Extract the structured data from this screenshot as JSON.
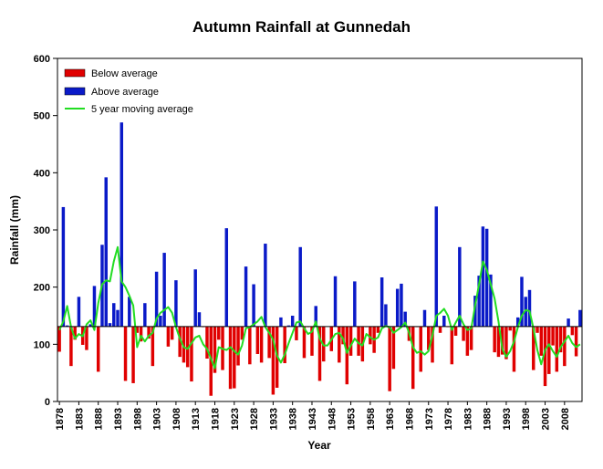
{
  "chart_data": {
    "type": "bar",
    "title": "Autumn Rainfall at Gunnedah",
    "xlabel": "Year",
    "ylabel": "Rainfall (mm)",
    "ylim": [
      0,
      600
    ],
    "yticks": [
      0,
      100,
      200,
      300,
      400,
      500,
      600
    ],
    "xticks": [
      1878,
      1883,
      1888,
      1893,
      1898,
      1903,
      1908,
      1913,
      1918,
      1923,
      1928,
      1933,
      1938,
      1943,
      1948,
      1953,
      1958,
      1963,
      1968,
      1973,
      1978,
      1983,
      1988,
      1993,
      1998,
      2003,
      2008
    ],
    "average": 131,
    "year_start": 1878,
    "year_end": 2012,
    "legend_position": "top-left",
    "legend": {
      "below": "Below average",
      "above": "Above average",
      "moving": "5 year moving average"
    },
    "colors": {
      "below": "#e00000",
      "above": "#0a1ac8",
      "moving": "#22dd22"
    },
    "values": [
      87,
      340,
      133,
      62,
      108,
      183,
      99,
      90,
      135,
      202,
      52,
      274,
      392,
      137,
      172,
      160,
      488,
      36,
      183,
      32,
      120,
      105,
      172,
      110,
      62,
      227,
      150,
      260,
      96,
      108,
      212,
      78,
      68,
      60,
      35,
      231,
      156,
      130,
      75,
      10,
      50,
      108,
      55,
      303,
      22,
      23,
      63,
      108,
      236,
      65,
      205,
      83,
      68,
      276,
      76,
      12,
      24,
      147,
      67,
      133,
      150,
      107,
      270,
      76,
      130,
      80,
      167,
      36,
      70,
      131,
      88,
      219,
      68,
      100,
      30,
      80,
      210,
      80,
      70,
      130,
      100,
      85,
      120,
      217,
      170,
      18,
      57,
      197,
      206,
      157,
      106,
      22,
      130,
      52,
      160,
      90,
      68,
      341,
      120,
      150,
      130,
      65,
      115,
      270,
      106,
      80,
      90,
      185,
      220,
      306,
      302,
      222,
      86,
      78,
      82,
      74,
      124,
      52,
      147,
      218,
      183,
      195,
      55,
      120,
      80,
      27,
      48,
      98,
      52,
      86,
      62,
      145,
      116,
      79,
      160
    ],
    "moving_average": [
      125,
      140,
      167,
      130,
      110,
      118,
      114,
      135,
      142,
      125,
      172,
      205,
      212,
      210,
      245,
      270,
      210,
      200,
      185,
      168,
      95,
      115,
      105,
      115,
      120,
      145,
      155,
      160,
      165,
      155,
      130,
      110,
      95,
      92,
      102,
      112,
      115,
      100,
      92,
      75,
      58,
      95,
      92,
      90,
      95,
      88,
      82,
      98,
      128,
      130,
      135,
      140,
      148,
      130,
      120,
      108,
      80,
      68,
      82,
      102,
      120,
      138,
      140,
      128,
      118,
      122,
      140,
      110,
      98,
      98,
      108,
      118,
      120,
      110,
      85,
      98,
      110,
      102,
      98,
      118,
      112,
      108,
      112,
      128,
      132,
      130,
      120,
      125,
      130,
      138,
      120,
      95,
      85,
      88,
      82,
      88,
      115,
      150,
      155,
      162,
      150,
      125,
      138,
      150,
      135,
      125,
      128,
      168,
      205,
      245,
      230,
      205,
      180,
      140,
      92,
      78,
      88,
      105,
      130,
      150,
      160,
      158,
      128,
      90,
      65,
      90,
      100,
      88,
      78,
      95,
      105,
      115,
      102,
      95,
      100
    ]
  }
}
